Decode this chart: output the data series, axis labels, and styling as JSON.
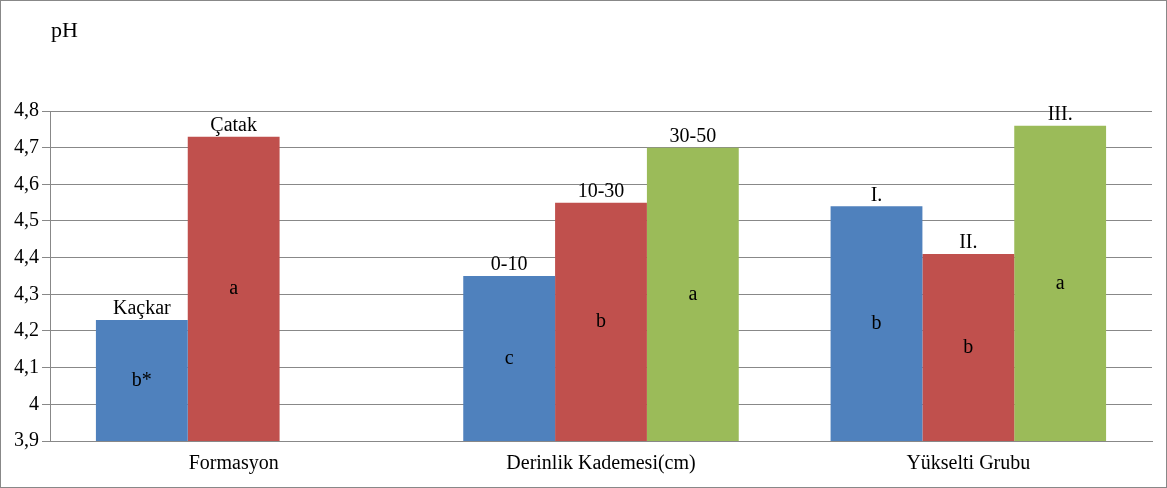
{
  "chart_data": {
    "type": "bar",
    "ylabel": "pH",
    "categories": [
      "Formasyon",
      "Derinlik Kademesi(cm)",
      "Yükselti Grubu"
    ],
    "series": [
      {
        "color": "#4f81bd",
        "values": [
          4.23,
          4.35,
          4.54
        ],
        "value_labels": [
          "Kaçkar",
          "0-10",
          "I."
        ]
      },
      {
        "color": "#c0504d",
        "values": [
          4.73,
          4.55,
          4.41
        ],
        "value_labels": [
          "Çatak",
          "10-30",
          "II."
        ]
      },
      {
        "color": "#9bbb59",
        "values": [
          null,
          4.7,
          4.76
        ],
        "value_labels": [
          null,
          "30-50",
          "III."
        ]
      }
    ],
    "ylim": [
      3.9,
      4.8
    ],
    "yticks": [
      {
        "value": 3.9,
        "label": "3,9"
      },
      {
        "value": 4,
        "label": "4"
      },
      {
        "value": 4.1,
        "label": "4,1"
      },
      {
        "value": 4.2,
        "label": "4,2"
      },
      {
        "value": 4.3,
        "label": "4,3"
      },
      {
        "value": 4.4,
        "label": "4,4"
      },
      {
        "value": 4.5,
        "label": "4,5"
      },
      {
        "value": 4.6,
        "label": "4,6"
      },
      {
        "value": 4.7,
        "label": "4,7"
      },
      {
        "value": 4.8,
        "label": "4,8"
      }
    ],
    "grid": "y",
    "legend": false,
    "annotations": [
      "b*",
      "a",
      "c",
      "b",
      "a",
      "b",
      "b",
      "a"
    ]
  }
}
